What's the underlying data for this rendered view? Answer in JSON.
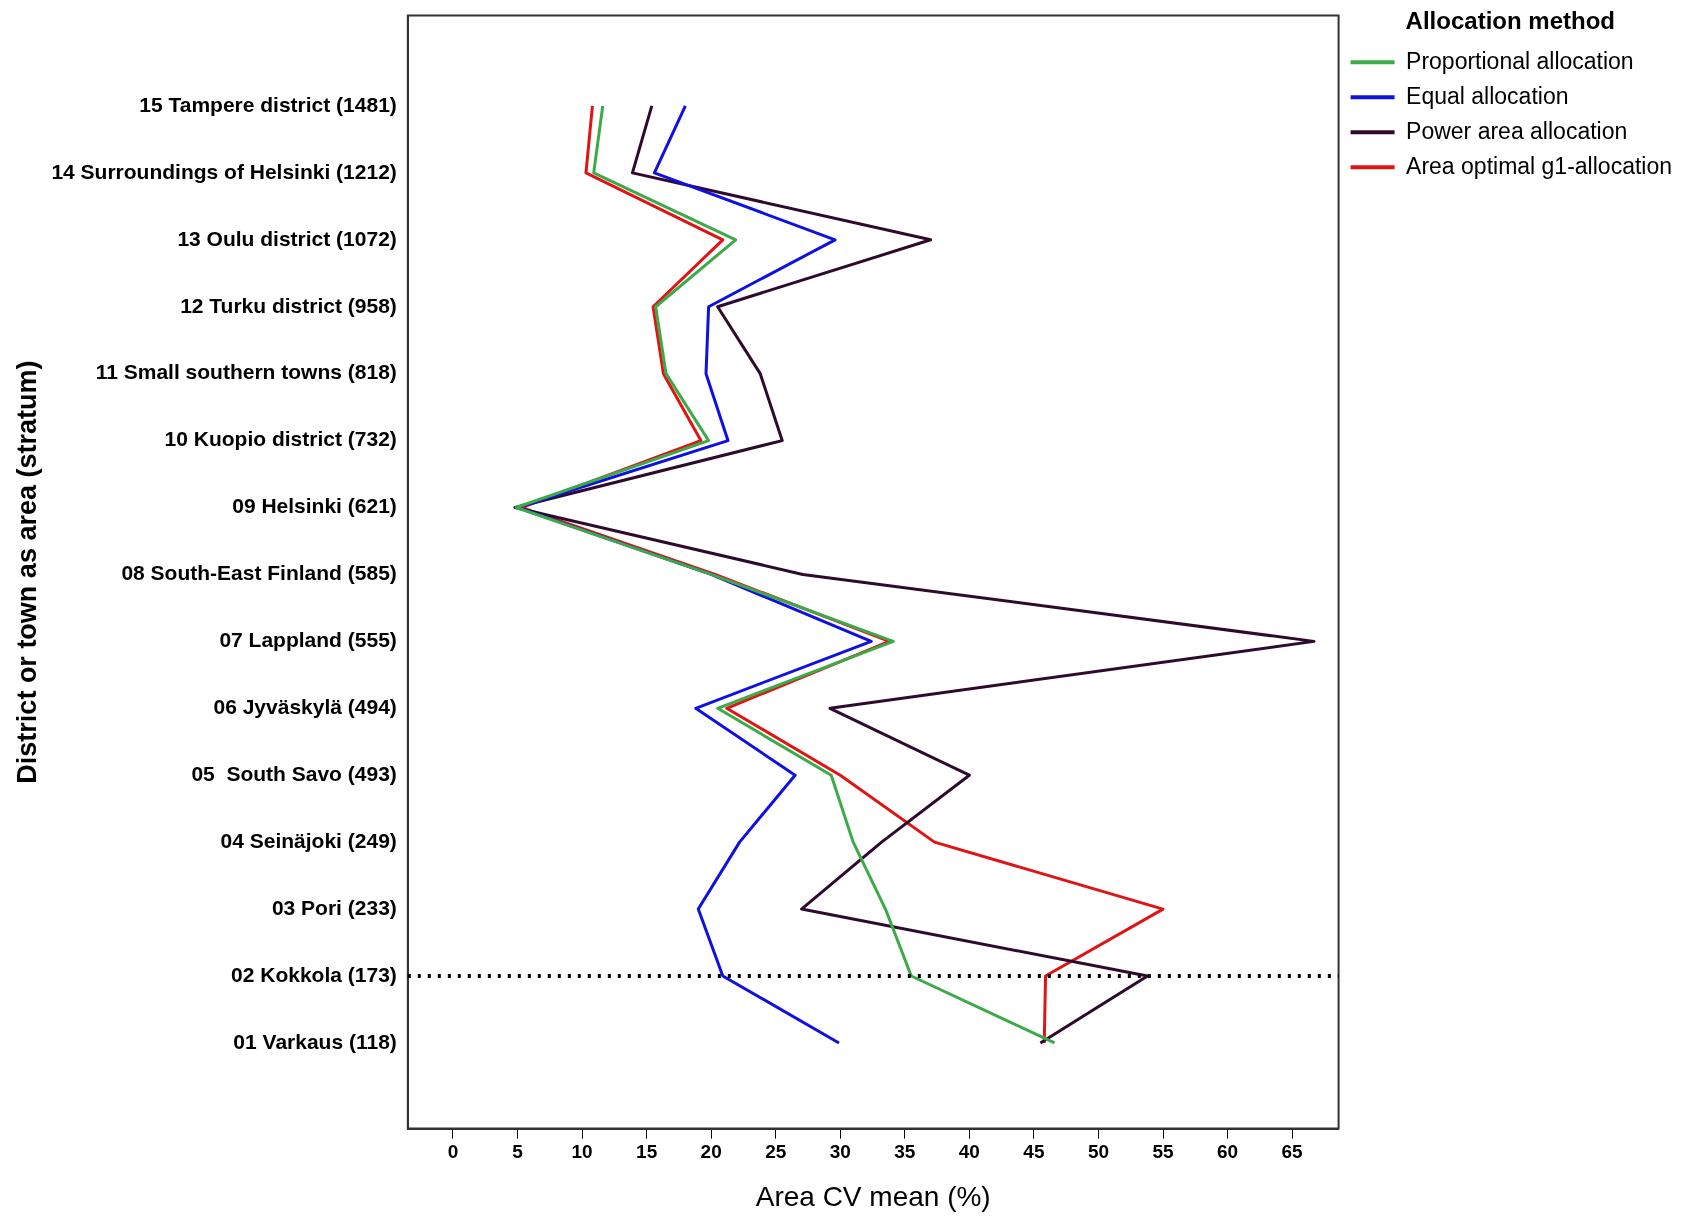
{
  "chart_data": {
    "type": "line",
    "orientation": "horizontal",
    "xlabel": "Area CV mean (%)",
    "ylabel": "District or town as area (stratum)",
    "legend_title": "Allocation method",
    "categories": [
      "15 Tampere district (1481)",
      "14 Surroundings of Helsinki (1212)",
      "13 Oulu district (1072)",
      "12 Turku district (958)",
      "11 Small southern towns (818)",
      "10 Kuopio district (732)",
      "09 Helsinki (621)",
      "08 South-East Finland (585)",
      "07 Lappland (555)",
      "06 Jyväskylä (494)",
      "05  South Savo (493)",
      "04 Seinäjoki (249)",
      "03 Pori (233)",
      "02 Kokkola (173)",
      "01 Varkaus (118)"
    ],
    "series": [
      {
        "name": "Proportional allocation",
        "color": "#3daa4a",
        "values": [
          11.6,
          10.9,
          21.9,
          15.7,
          16.5,
          19.8,
          4.9,
          20,
          34.1,
          20.5,
          29.3,
          31,
          33.5,
          35.5,
          46.6
        ]
      },
      {
        "name": "Equal allocation",
        "color": "#1010e0",
        "values": [
          18,
          15.6,
          29.6,
          19.8,
          19.6,
          21.3,
          5,
          20,
          32.4,
          18.8,
          26.5,
          22.2,
          19,
          20.9,
          29.9
        ]
      },
      {
        "name": "Power area allocation",
        "color": "#2e0b2e",
        "values": [
          15.4,
          13.9,
          37,
          20.5,
          23.8,
          25.5,
          4.8,
          27.1,
          66.7,
          29.2,
          40,
          33.2,
          27,
          53.8,
          45.5
        ]
      },
      {
        "name": "Area optimal g1-allocation",
        "color": "#e01414",
        "values": [
          10.8,
          10.3,
          20.9,
          15.5,
          16.3,
          19.2,
          5.3,
          20.3,
          33.8,
          21.2,
          30,
          37.3,
          55,
          45.9,
          45.8
        ]
      }
    ],
    "xlim": [
      -3.5,
      68.6
    ],
    "xticks": [
      0,
      5,
      10,
      15,
      20,
      25,
      30,
      35,
      40,
      45,
      50,
      55,
      60,
      65
    ],
    "ref_lines": [
      {
        "axis": "y",
        "value": "02 Kokkola (173)",
        "color": "#000000",
        "line_style": "dotted"
      }
    ],
    "grid": false,
    "legend": "top right",
    "marker": "none",
    "line_style": "solid"
  }
}
